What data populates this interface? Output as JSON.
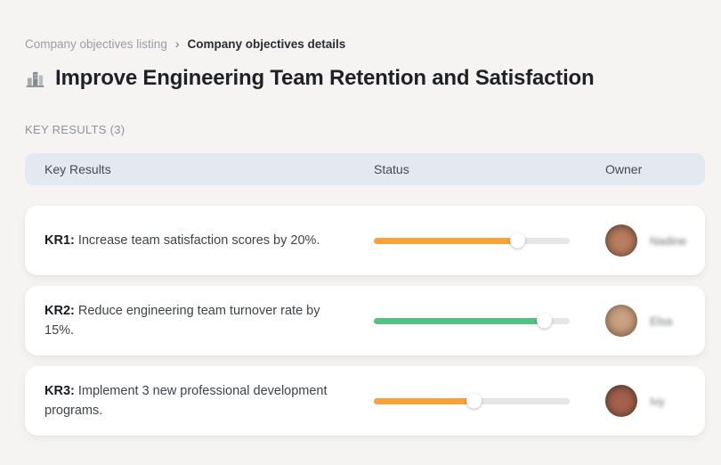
{
  "breadcrumb": {
    "separator": "›",
    "items": [
      {
        "label": "Company objectives listing"
      },
      {
        "label": "Company objectives details"
      }
    ]
  },
  "header": {
    "icon": "buildings-icon",
    "title": "Improve Engineering Team Retention and Satisfaction"
  },
  "section": {
    "label": "KEY RESULTS (3)"
  },
  "table": {
    "columns": [
      "Key Results",
      "Status",
      "Owner"
    ],
    "rows": [
      {
        "id": "KR1:",
        "text": "Increase team satisfaction scores by 20%.",
        "progress": 73,
        "color": "#F7A23B",
        "owner": "Nadine"
      },
      {
        "id": "KR2:",
        "text": "Reduce engineering team turnover rate by 15%.",
        "progress": 87,
        "color": "#55C184",
        "owner": "Elsa"
      },
      {
        "id": "KR3:",
        "text": "Implement 3 new professional development programs.",
        "progress": 51,
        "color": "#F7A23B",
        "owner": "Ivy"
      }
    ]
  },
  "colors": {
    "accent_orange": "#F7A23B",
    "accent_green": "#55C184",
    "progress_track": "#E6E6E7",
    "header_row_bg": "#E4E8F1",
    "page_bg": "#F5F4F2",
    "card_bg": "#FFFFFF"
  }
}
